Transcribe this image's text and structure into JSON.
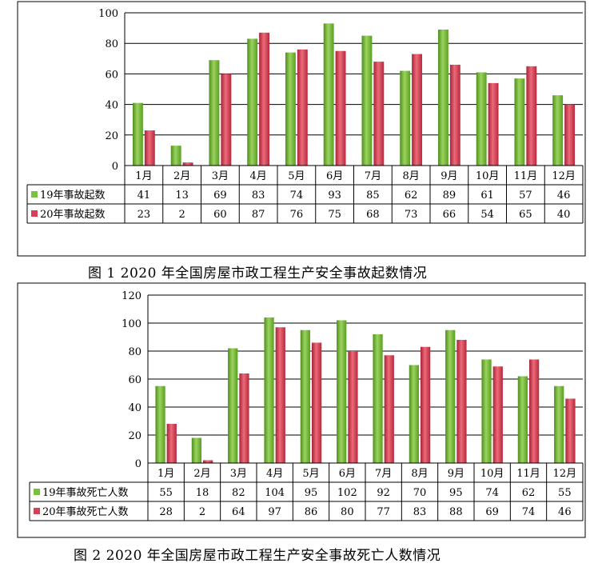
{
  "captions": [
    "图 1 2020 年全国房屋市政工程生产安全事故起数情况",
    "图 2 2020 年全国房屋市政工程生产安全事故死亡人数情况"
  ],
  "colors": {
    "series_2019": "#7ac142",
    "series_2020": "#d94055",
    "border": "#000000"
  },
  "chart_data": [
    {
      "type": "bar",
      "title": "",
      "categories": [
        "1月",
        "2月",
        "3月",
        "4月",
        "5月",
        "6月",
        "7月",
        "8月",
        "9月",
        "10月",
        "11月",
        "12月"
      ],
      "series": [
        {
          "name": "19年事故起数",
          "values": [
            41,
            13,
            69,
            83,
            74,
            93,
            85,
            62,
            89,
            61,
            57,
            46
          ]
        },
        {
          "name": "20年事故起数",
          "values": [
            23,
            2,
            60,
            87,
            76,
            75,
            68,
            73,
            66,
            54,
            65,
            40
          ]
        }
      ],
      "ylim": [
        0,
        100
      ],
      "yticks": [
        0,
        20,
        40,
        60,
        80,
        100
      ],
      "grid": true,
      "legend": "data-table"
    },
    {
      "type": "bar",
      "title": "",
      "categories": [
        "1月",
        "2月",
        "3月",
        "4月",
        "5月",
        "6月",
        "7月",
        "8月",
        "9月",
        "10月",
        "11月",
        "12月"
      ],
      "series": [
        {
          "name": "19年事故死亡人数",
          "values": [
            55,
            18,
            82,
            104,
            95,
            102,
            92,
            70,
            95,
            74,
            62,
            55
          ]
        },
        {
          "name": "20年事故死亡人数",
          "values": [
            28,
            2,
            64,
            97,
            86,
            80,
            77,
            83,
            88,
            69,
            74,
            46
          ]
        }
      ],
      "ylim": [
        0,
        120
      ],
      "yticks": [
        0,
        20,
        40,
        60,
        80,
        100,
        120
      ],
      "grid": true,
      "legend": "data-table"
    }
  ]
}
